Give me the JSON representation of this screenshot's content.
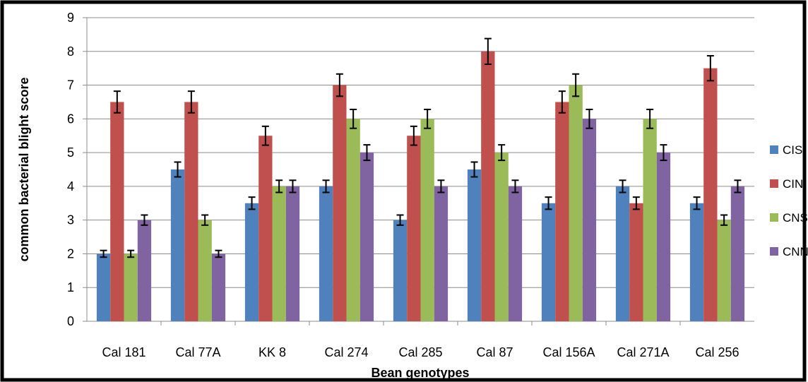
{
  "chart_data": {
    "type": "bar",
    "title": "",
    "xlabel": "Bean genotypes",
    "ylabel": "common bacterial blight score",
    "ylim": [
      0,
      9
    ],
    "yticks": [
      0,
      1,
      2,
      3,
      4,
      5,
      6,
      7,
      8,
      9
    ],
    "grid": true,
    "legend_position": "right",
    "categories": [
      "Cal 181",
      "Cal 77A",
      "KK 8",
      "Cal 274",
      "Cal 285",
      "Cal 87",
      "Cal 156A",
      "Cal 271A",
      "Cal 256"
    ],
    "series": [
      {
        "name": "CIS",
        "color": "#4F81BD",
        "values": [
          2,
          4.5,
          3.5,
          4,
          3,
          4.5,
          3.5,
          4,
          3.5
        ],
        "errors": [
          0.1,
          0.22,
          0.18,
          0.18,
          0.15,
          0.22,
          0.18,
          0.18,
          0.18
        ]
      },
      {
        "name": "CIN",
        "color": "#C0504D",
        "values": [
          6.5,
          6.5,
          5.5,
          7,
          5.5,
          8,
          6.5,
          3.5,
          7.5
        ],
        "errors": [
          0.32,
          0.32,
          0.28,
          0.33,
          0.28,
          0.38,
          0.32,
          0.18,
          0.37
        ]
      },
      {
        "name": "CNS",
        "color": "#9BBB59",
        "values": [
          2,
          3,
          4,
          6,
          6,
          5,
          7,
          6,
          3
        ],
        "errors": [
          0.1,
          0.15,
          0.18,
          0.28,
          0.28,
          0.23,
          0.33,
          0.28,
          0.15
        ]
      },
      {
        "name": "CNN",
        "color": "#8064A2",
        "values": [
          3,
          2,
          4,
          5,
          4,
          4,
          6,
          5,
          4
        ],
        "errors": [
          0.15,
          0.1,
          0.18,
          0.23,
          0.18,
          0.18,
          0.28,
          0.23,
          0.18
        ]
      }
    ]
  }
}
